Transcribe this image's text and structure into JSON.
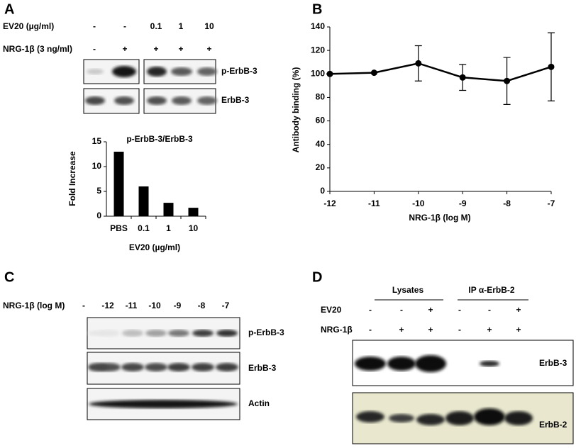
{
  "panel_labels": [
    "A",
    "B",
    "C",
    "D"
  ],
  "panel_a": {
    "rows": [
      {
        "label": "EV20 (µg/ml)",
        "values": [
          "-",
          "-",
          "0.1",
          "1",
          "10"
        ]
      },
      {
        "label": "NRG-1β (3 ng/ml)",
        "values": [
          "-",
          "+",
          "+",
          "+",
          "+"
        ]
      }
    ],
    "blots": [
      "p-ErbB-3",
      "ErbB-3"
    ]
  },
  "chart_data": [
    {
      "type": "bar",
      "title": "p-ErbB-3/ErbB-3",
      "x_label": "EV20 (µg/ml)",
      "y_label": "Fold Increase",
      "categories": [
        "PBS",
        "0.1",
        "1",
        "10"
      ],
      "values": [
        13,
        6,
        2.7,
        1.7
      ],
      "color": "#000000",
      "ylim": [
        0,
        15
      ],
      "yticks": [
        0,
        5,
        10,
        15
      ]
    },
    {
      "type": "line",
      "x_label": "NRG-1β (log M)",
      "y_label": "Antibody binding (%)",
      "x": [
        -12,
        -11,
        -10,
        -9,
        -8,
        -7
      ],
      "series": [
        {
          "values": [
            100,
            101,
            109,
            97,
            94,
            106
          ],
          "errors": [
            0,
            0,
            15,
            11,
            20,
            29
          ],
          "color": "#000000"
        }
      ],
      "xlim": [
        -12,
        -7
      ],
      "xticks": [
        -12,
        -11,
        -10,
        -9,
        -8,
        -7
      ],
      "ylim": [
        0,
        140
      ],
      "yticks": [
        0,
        20,
        40,
        60,
        80,
        100,
        120,
        140
      ]
    }
  ],
  "panel_c": {
    "row_label": "NRG-1β (log M)",
    "lanes": [
      "-",
      "-12",
      "-11",
      "-10",
      "-9",
      "-8",
      "-7"
    ],
    "blots": [
      "p-ErbB-3",
      "ErbB-3",
      "Actin"
    ]
  },
  "panel_d": {
    "groups": [
      "Lysates",
      "IP α-ErbB-2"
    ],
    "rows": [
      {
        "label": "EV20",
        "values": [
          "-",
          "-",
          "+",
          "-",
          "-",
          "+"
        ]
      },
      {
        "label": "NRG-1β",
        "values": [
          "-",
          "+",
          "+",
          "-",
          "+",
          "+"
        ]
      }
    ],
    "blots": [
      "ErbB-3",
      "ErbB-2"
    ]
  }
}
